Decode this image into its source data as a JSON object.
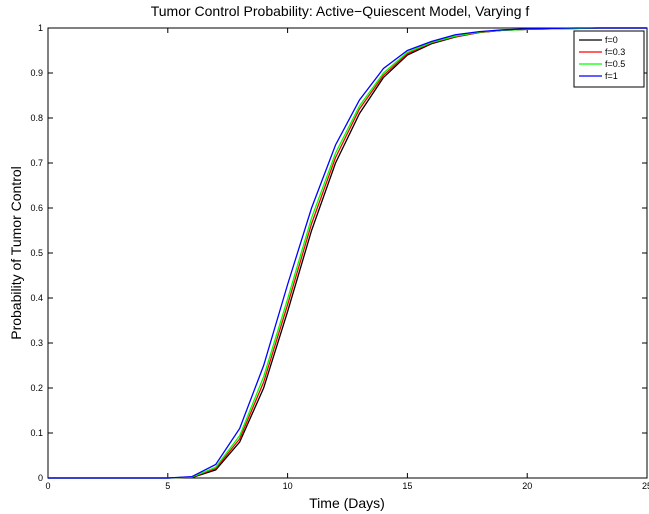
{
  "chart_data": {
    "type": "line",
    "title": "Tumor Control Probability: Active−Quiescent Model, Varying f",
    "xlabel": "Time (Days)",
    "ylabel": "Probability of Tumor Control",
    "x": [
      0,
      1,
      2,
      3,
      4,
      5,
      6,
      7,
      8,
      9,
      10,
      11,
      12,
      13,
      14,
      15,
      16,
      17,
      18,
      19,
      20,
      21,
      22,
      23,
      24,
      25
    ],
    "series": [
      {
        "name": "f=0",
        "color": "#000000",
        "values": [
          0,
          0,
          0,
          0,
          0,
          0,
          0.001,
          0.018,
          0.08,
          0.2,
          0.37,
          0.55,
          0.7,
          0.81,
          0.89,
          0.94,
          0.965,
          0.98,
          0.99,
          0.995,
          0.997,
          0.998,
          0.999,
          1,
          1,
          1
        ]
      },
      {
        "name": "f=0.3",
        "color": "#ff0000",
        "values": [
          0,
          0,
          0,
          0,
          0,
          0,
          0.002,
          0.021,
          0.087,
          0.213,
          0.385,
          0.565,
          0.712,
          0.82,
          0.895,
          0.943,
          0.967,
          0.981,
          0.99,
          0.995,
          0.997,
          0.998,
          0.999,
          1,
          1,
          1
        ]
      },
      {
        "name": "f=0.5",
        "color": "#00ff00",
        "values": [
          0,
          0,
          0,
          0,
          0,
          0,
          0.002,
          0.024,
          0.094,
          0.225,
          0.398,
          0.578,
          0.722,
          0.827,
          0.9,
          0.946,
          0.968,
          0.982,
          0.991,
          0.995,
          0.997,
          0.998,
          0.999,
          1,
          1,
          1
        ]
      },
      {
        "name": "f=1",
        "color": "#0000ff",
        "values": [
          0,
          0,
          0,
          0,
          0,
          0,
          0.003,
          0.03,
          0.11,
          0.25,
          0.43,
          0.6,
          0.74,
          0.84,
          0.91,
          0.95,
          0.97,
          0.985,
          0.992,
          0.996,
          0.998,
          0.999,
          1,
          1,
          1,
          1
        ]
      }
    ],
    "xlim": [
      0,
      25
    ],
    "xticks": [
      0,
      5,
      10,
      15,
      20,
      25
    ],
    "ylim": [
      0,
      1
    ],
    "yticks": [
      0,
      0.1,
      0.2,
      0.3,
      0.4,
      0.5,
      0.6,
      0.7,
      0.8,
      0.9,
      1
    ],
    "legend": "upper right"
  }
}
